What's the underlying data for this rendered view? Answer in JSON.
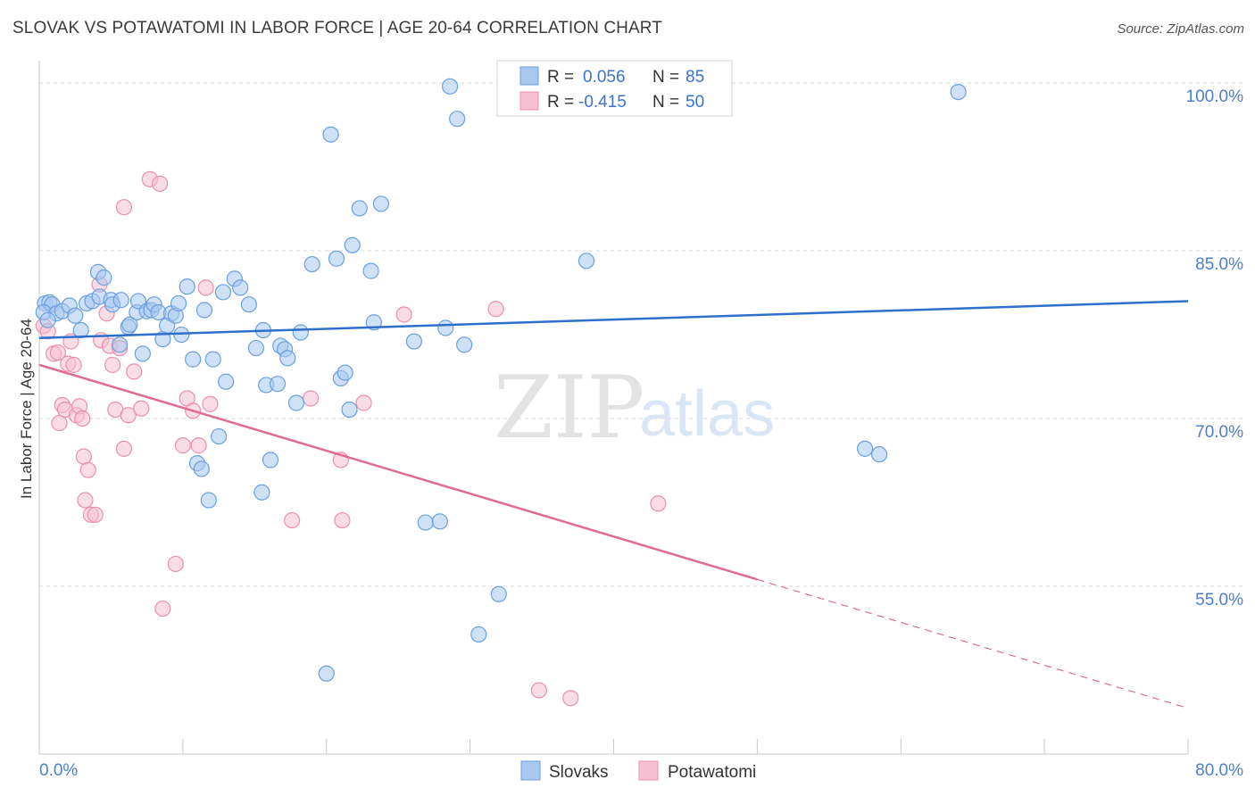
{
  "title": "SLOVAK VS POTAWATOMI IN LABOR FORCE | AGE 20-64 CORRELATION CHART",
  "source": "Source: ZipAtlas.com",
  "watermark": {
    "left": "ZIP",
    "right": "atlas"
  },
  "colors": {
    "slovak_fill": "#a8c8f0",
    "slovak_stroke": "#6a9fe0",
    "slovak_line": "#2f6fcc",
    "pota_fill": "#f6bfd2",
    "pota_stroke": "#eb8fb0",
    "pota_line": "#e06a96",
    "axis_text": "#4a7fd0",
    "grid": "#d8d8d8"
  },
  "legend": {
    "row1": {
      "r_label": "R =",
      "r_value": "0.056",
      "n_label": "N =",
      "n_value": "85"
    },
    "row2": {
      "r_label": "R =",
      "r_value": "-0.415",
      "n_label": "N =",
      "n_value": "50"
    }
  },
  "chart_data": {
    "type": "scatter",
    "title": "SLOVAK VS POTAWATOMI IN LABOR FORCE | AGE 20-64 CORRELATION CHART",
    "xlabel": "",
    "ylabel": "In Labor Force | Age 20-64",
    "xlim": [
      0,
      80
    ],
    "ylim": [
      40,
      102
    ],
    "x_tick_labels": [
      "0.0%",
      "80.0%"
    ],
    "y_ticks": [
      55,
      70,
      85,
      100
    ],
    "y_tick_labels": [
      "55.0%",
      "70.0%",
      "85.0%",
      "100.0%"
    ],
    "grid": true,
    "legend_position": "top-center",
    "series": [
      {
        "name": "Slovaks",
        "r": 0.056,
        "n": 85,
        "trend": {
          "x": [
            0,
            80
          ],
          "y": [
            77.2,
            80.5
          ],
          "dashed_from": null
        },
        "points": [
          [
            0.4,
            80.3
          ],
          [
            0.7,
            80.4
          ],
          [
            0.9,
            80.2
          ],
          [
            0.3,
            79.5
          ],
          [
            1.2,
            79.4
          ],
          [
            1.6,
            79.6
          ],
          [
            0.6,
            78.8
          ],
          [
            2.1,
            80.1
          ],
          [
            2.5,
            79.2
          ],
          [
            2.9,
            77.9
          ],
          [
            3.3,
            80.3
          ],
          [
            3.7,
            80.5
          ],
          [
            4.2,
            80.9
          ],
          [
            4.1,
            83.1
          ],
          [
            4.5,
            82.6
          ],
          [
            5.0,
            80.6
          ],
          [
            5.1,
            80.2
          ],
          [
            5.7,
            80.6
          ],
          [
            5.6,
            76.6
          ],
          [
            6.2,
            78.2
          ],
          [
            6.3,
            78.4
          ],
          [
            6.8,
            79.5
          ],
          [
            6.9,
            80.5
          ],
          [
            7.2,
            75.8
          ],
          [
            7.5,
            79.6
          ],
          [
            7.8,
            79.7
          ],
          [
            8.0,
            80.2
          ],
          [
            8.3,
            79.5
          ],
          [
            8.6,
            77.1
          ],
          [
            8.9,
            78.3
          ],
          [
            9.2,
            79.4
          ],
          [
            9.5,
            79.2
          ],
          [
            9.7,
            80.3
          ],
          [
            9.9,
            77.5
          ],
          [
            10.3,
            81.8
          ],
          [
            10.7,
            75.3
          ],
          [
            11.0,
            66.0
          ],
          [
            11.3,
            65.5
          ],
          [
            11.5,
            79.7
          ],
          [
            11.8,
            62.7
          ],
          [
            12.1,
            75.3
          ],
          [
            12.5,
            68.4
          ],
          [
            12.8,
            81.3
          ],
          [
            13.0,
            73.3
          ],
          [
            13.6,
            82.5
          ],
          [
            14.0,
            81.7
          ],
          [
            14.6,
            80.2
          ],
          [
            15.1,
            76.3
          ],
          [
            15.5,
            63.4
          ],
          [
            15.6,
            77.9
          ],
          [
            15.8,
            73.0
          ],
          [
            16.1,
            66.3
          ],
          [
            16.6,
            73.1
          ],
          [
            16.8,
            76.5
          ],
          [
            17.1,
            76.2
          ],
          [
            17.3,
            75.4
          ],
          [
            17.9,
            71.4
          ],
          [
            18.2,
            77.7
          ],
          [
            19.0,
            83.8
          ],
          [
            20.0,
            47.2
          ],
          [
            20.3,
            95.4
          ],
          [
            20.7,
            84.3
          ],
          [
            21.0,
            73.6
          ],
          [
            21.3,
            74.1
          ],
          [
            21.6,
            70.8
          ],
          [
            21.8,
            85.5
          ],
          [
            22.3,
            88.8
          ],
          [
            23.1,
            83.2
          ],
          [
            23.3,
            78.6
          ],
          [
            23.8,
            89.2
          ],
          [
            26.1,
            76.9
          ],
          [
            26.9,
            60.7
          ],
          [
            27.9,
            60.8
          ],
          [
            28.3,
            78.1
          ],
          [
            28.6,
            99.7
          ],
          [
            29.1,
            96.8
          ],
          [
            29.6,
            76.6
          ],
          [
            30.6,
            50.7
          ],
          [
            32.0,
            54.3
          ],
          [
            33.5,
            98.0
          ],
          [
            38.1,
            84.1
          ],
          [
            43.2,
            99.5
          ],
          [
            57.5,
            67.3
          ],
          [
            58.5,
            66.8
          ],
          [
            64.0,
            99.2
          ]
        ]
      },
      {
        "name": "Potawatomi",
        "r": -0.415,
        "n": 50,
        "trend": {
          "x": [
            0,
            80
          ],
          "y": [
            74.8,
            44.1
          ],
          "dashed_from": 50.0
        },
        "points": [
          [
            0.3,
            78.3
          ],
          [
            0.6,
            77.8
          ],
          [
            1.0,
            75.8
          ],
          [
            1.3,
            75.9
          ],
          [
            1.4,
            69.6
          ],
          [
            1.6,
            71.2
          ],
          [
            1.8,
            70.8
          ],
          [
            2.0,
            74.9
          ],
          [
            2.2,
            76.9
          ],
          [
            2.4,
            74.8
          ],
          [
            2.6,
            70.3
          ],
          [
            2.8,
            71.1
          ],
          [
            3.0,
            70.0
          ],
          [
            3.1,
            66.6
          ],
          [
            3.4,
            65.4
          ],
          [
            3.2,
            62.7
          ],
          [
            3.6,
            61.4
          ],
          [
            3.9,
            61.4
          ],
          [
            4.2,
            82.0
          ],
          [
            4.3,
            77.0
          ],
          [
            4.7,
            79.4
          ],
          [
            4.9,
            76.5
          ],
          [
            5.1,
            74.8
          ],
          [
            5.3,
            70.8
          ],
          [
            5.6,
            76.3
          ],
          [
            5.9,
            67.3
          ],
          [
            5.9,
            88.9
          ],
          [
            6.2,
            70.3
          ],
          [
            6.6,
            74.2
          ],
          [
            7.1,
            70.9
          ],
          [
            7.7,
            91.4
          ],
          [
            8.4,
            91.0
          ],
          [
            8.6,
            53.0
          ],
          [
            9.5,
            57.0
          ],
          [
            10.0,
            67.6
          ],
          [
            10.3,
            71.8
          ],
          [
            10.7,
            70.7
          ],
          [
            11.1,
            67.6
          ],
          [
            11.9,
            71.3
          ],
          [
            11.6,
            81.7
          ],
          [
            17.6,
            60.9
          ],
          [
            18.9,
            71.8
          ],
          [
            21.0,
            66.3
          ],
          [
            21.1,
            60.9
          ],
          [
            22.6,
            71.4
          ],
          [
            25.4,
            79.3
          ],
          [
            31.8,
            79.8
          ],
          [
            34.8,
            45.7
          ],
          [
            37.0,
            45.0
          ],
          [
            43.1,
            62.4
          ]
        ]
      }
    ]
  },
  "bottom_legend": {
    "item1": "Slovaks",
    "item2": "Potawatomi"
  }
}
